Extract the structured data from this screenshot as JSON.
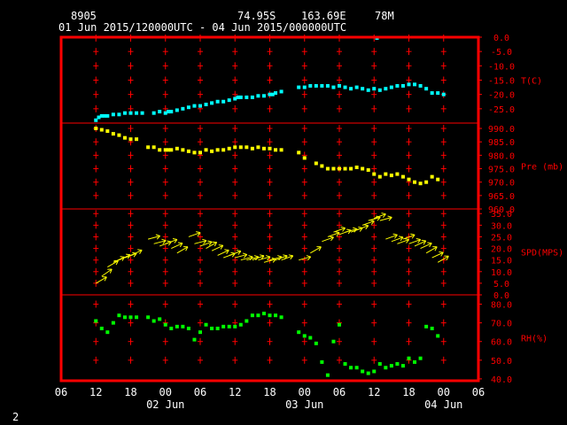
{
  "header": {
    "station_id": "8905",
    "lat": "74.95S",
    "lon": "163.69E",
    "elevation": "78M",
    "time_range": "01 Jun 2015/120000UTC - 04 Jun 2015/000000UTC"
  },
  "footer": {
    "page_number": "2"
  },
  "colors": {
    "background": "#000000",
    "frame": "#ff0000",
    "grid": "#ff0000",
    "labels": "#ffffff",
    "panel_labels": "#ff0000",
    "temperature": "#00ffff",
    "pressure": "#ffff00",
    "wind": "#ffff00",
    "humidity": "#00ff00"
  },
  "chart_data": {
    "type": "scatter",
    "x_axis": {
      "units": "hours since 01 Jun 2015 00:00 UTC",
      "range": [
        6,
        78
      ],
      "tick_labels": [
        "06",
        "12",
        "18",
        "00",
        "06",
        "12",
        "18",
        "00",
        "06",
        "12",
        "18",
        "00",
        "06"
      ],
      "tick_values": [
        6,
        12,
        18,
        24,
        30,
        36,
        42,
        48,
        54,
        60,
        66,
        72,
        78
      ],
      "grid_ticks": [
        12,
        18,
        24,
        30,
        36,
        42,
        48,
        54,
        60,
        66,
        72
      ],
      "day_labels": [
        {
          "text": "02 Jun",
          "at": 24
        },
        {
          "text": "03 Jun",
          "at": 48
        },
        {
          "text": "04 Jun",
          "at": 72
        }
      ]
    },
    "panels": [
      {
        "id": "temperature",
        "label": "T(C)",
        "range": [
          -30,
          0
        ],
        "tick_labels": [
          "0.0",
          "-5.0",
          "-10.0",
          "-15.0",
          "-20.0",
          "-25.0"
        ],
        "tick_values": [
          0,
          -5,
          -10,
          -15,
          -20,
          -25
        ],
        "grid_rows": [
          -0.3,
          -5,
          -10,
          -15,
          -20,
          -25
        ],
        "series": {
          "color": "#00ffff",
          "points": [
            [
              12,
              -29
            ],
            [
              12.5,
              -28
            ],
            [
              13,
              -27.5
            ],
            [
              13.5,
              -27.5
            ],
            [
              14,
              -27.5
            ],
            [
              15,
              -27
            ],
            [
              16,
              -27
            ],
            [
              17,
              -26.5
            ],
            [
              18,
              -26.5
            ],
            [
              19,
              -26.5
            ],
            [
              20,
              -26.5
            ],
            [
              22,
              -26.5
            ],
            [
              23,
              -26
            ],
            [
              24,
              -26.5
            ],
            [
              24.5,
              -26
            ],
            [
              25,
              -26
            ],
            [
              26,
              -25.5
            ],
            [
              27,
              -25
            ],
            [
              28,
              -24.5
            ],
            [
              29,
              -24
            ],
            [
              30,
              -24
            ],
            [
              31,
              -23.5
            ],
            [
              32,
              -23
            ],
            [
              33,
              -22.5
            ],
            [
              34,
              -22.5
            ],
            [
              35,
              -22
            ],
            [
              36,
              -21.5
            ],
            [
              36.5,
              -21
            ],
            [
              37,
              -21
            ],
            [
              38,
              -21
            ],
            [
              39,
              -21
            ],
            [
              40,
              -20.5
            ],
            [
              41,
              -20.5
            ],
            [
              42,
              -20
            ],
            [
              42.5,
              -20
            ],
            [
              43,
              -19.5
            ],
            [
              44,
              -19
            ],
            [
              47,
              -17.5
            ],
            [
              48,
              -17.5
            ],
            [
              49,
              -17
            ],
            [
              50,
              -17
            ],
            [
              51,
              -17
            ],
            [
              52,
              -17
            ],
            [
              53,
              -17.5
            ],
            [
              54,
              -17
            ],
            [
              55,
              -17.5
            ],
            [
              56,
              -18
            ],
            [
              57,
              -17.5
            ],
            [
              58,
              -18
            ],
            [
              59,
              -18.5
            ],
            [
              60,
              -18
            ],
            [
              60.5,
              -0.3
            ],
            [
              61,
              -18.5
            ],
            [
              62,
              -18
            ],
            [
              63,
              -17.5
            ],
            [
              64,
              -17
            ],
            [
              65,
              -17
            ],
            [
              66,
              -16.5
            ],
            [
              67,
              -16.5
            ],
            [
              68,
              -17
            ],
            [
              69,
              -18
            ],
            [
              70,
              -19.5
            ],
            [
              71,
              -19.5
            ],
            [
              72,
              -20
            ]
          ]
        }
      },
      {
        "id": "pressure",
        "label": "Pre (mb)",
        "range": [
          960,
          992
        ],
        "tick_labels": [
          "990.0",
          "985.0",
          "980.0",
          "975.0",
          "970.0",
          "965.0",
          "960.0"
        ],
        "tick_values": [
          990,
          985,
          980,
          975,
          970,
          965,
          960
        ],
        "grid_rows": [
          990,
          985,
          980,
          975,
          970,
          965
        ],
        "series": {
          "color": "#ffff00",
          "points": [
            [
              12,
              990
            ],
            [
              13,
              989.5
            ],
            [
              14,
              989
            ],
            [
              15,
              988
            ],
            [
              16,
              987.5
            ],
            [
              17,
              986.5
            ],
            [
              18,
              986
            ],
            [
              19,
              986
            ],
            [
              21,
              983
            ],
            [
              22,
              983
            ],
            [
              23,
              982
            ],
            [
              24,
              982
            ],
            [
              24.5,
              982
            ],
            [
              25,
              982
            ],
            [
              26,
              982.5
            ],
            [
              27,
              982
            ],
            [
              28,
              981.5
            ],
            [
              29,
              981
            ],
            [
              30,
              981
            ],
            [
              31,
              982
            ],
            [
              32,
              981.5
            ],
            [
              33,
              982
            ],
            [
              34,
              982
            ],
            [
              35,
              982.5
            ],
            [
              36,
              983
            ],
            [
              37,
              983
            ],
            [
              38,
              983
            ],
            [
              39,
              982.5
            ],
            [
              40,
              983
            ],
            [
              41,
              982.5
            ],
            [
              42,
              982.5
            ],
            [
              43,
              982
            ],
            [
              44,
              982
            ],
            [
              47,
              981
            ],
            [
              48,
              979
            ],
            [
              50,
              977
            ],
            [
              51,
              976
            ],
            [
              52,
              975
            ],
            [
              53,
              975
            ],
            [
              54,
              975
            ],
            [
              55,
              975
            ],
            [
              56,
              975
            ],
            [
              57,
              975.5
            ],
            [
              58,
              975
            ],
            [
              59,
              974.5
            ],
            [
              60,
              973
            ],
            [
              61,
              972
            ],
            [
              62,
              973
            ],
            [
              63,
              972.5
            ],
            [
              64,
              973
            ],
            [
              65,
              972
            ],
            [
              66,
              971
            ],
            [
              67,
              970
            ],
            [
              68,
              969.5
            ],
            [
              69,
              970
            ],
            [
              70,
              972
            ],
            [
              71,
              971
            ]
          ]
        }
      },
      {
        "id": "wind",
        "label": "SPD(MPS)",
        "range": [
          0,
          37
        ],
        "tick_labels": [
          "35.0",
          "30.0",
          "25.0",
          "20.0",
          "15.0",
          "10.0",
          "5.0",
          "0.0"
        ],
        "tick_values": [
          35,
          30,
          25,
          20,
          15,
          10,
          5,
          0
        ],
        "grid_rows": [
          35,
          30,
          25,
          20,
          15,
          10,
          5
        ],
        "series": {
          "color": "#ffff00",
          "points": [
            [
              12,
              5,
              30
            ],
            [
              13,
              8,
              35
            ],
            [
              14,
              12,
              30
            ],
            [
              15,
              14,
              25
            ],
            [
              16,
              15,
              25
            ],
            [
              17,
              16,
              20
            ],
            [
              18,
              17,
              25
            ],
            [
              21,
              24,
              15
            ],
            [
              22,
              22,
              15
            ],
            [
              23,
              21,
              20
            ],
            [
              24,
              22,
              20
            ],
            [
              25,
              20,
              25
            ],
            [
              26,
              18,
              30
            ],
            [
              28,
              25,
              20
            ],
            [
              29,
              22,
              15
            ],
            [
              30,
              21,
              20
            ],
            [
              31,
              20,
              30
            ],
            [
              32,
              19,
              25
            ],
            [
              33,
              17,
              25
            ],
            [
              34,
              16,
              20
            ],
            [
              35,
              17,
              20
            ],
            [
              36,
              16,
              15
            ],
            [
              37,
              15,
              15
            ],
            [
              38,
              15,
              15
            ],
            [
              39,
              15,
              20
            ],
            [
              40,
              15,
              15
            ],
            [
              41,
              14,
              15
            ],
            [
              42,
              15,
              15
            ],
            [
              43,
              15,
              20
            ],
            [
              44,
              15,
              20
            ],
            [
              47,
              15,
              15
            ],
            [
              49,
              18,
              30
            ],
            [
              51,
              23,
              20
            ],
            [
              52,
              25,
              20
            ],
            [
              53,
              27,
              20
            ],
            [
              54,
              26,
              20
            ],
            [
              55,
              27,
              15
            ],
            [
              56,
              27,
              20
            ],
            [
              57,
              28,
              20
            ],
            [
              58,
              30,
              20
            ],
            [
              59,
              32,
              15
            ],
            [
              60,
              33,
              20
            ],
            [
              61,
              32,
              15
            ],
            [
              62,
              24,
              20
            ],
            [
              63,
              23,
              20
            ],
            [
              64,
              22,
              20
            ],
            [
              65,
              24,
              20
            ],
            [
              66,
              22,
              20
            ],
            [
              67,
              21,
              25
            ],
            [
              68,
              20,
              25
            ],
            [
              69,
              18,
              30
            ],
            [
              70,
              16,
              25
            ],
            [
              71,
              14,
              30
            ]
          ]
        }
      },
      {
        "id": "humidity",
        "label": "RH(%)",
        "range": [
          39,
          85
        ],
        "tick_labels": [
          "80.0",
          "70.0",
          "60.0",
          "50.0",
          "40.0"
        ],
        "tick_values": [
          80,
          70,
          60,
          50,
          40
        ],
        "grid_rows": [
          80,
          70,
          60,
          50
        ],
        "series": {
          "color": "#00ff00",
          "points": [
            [
              12,
              71
            ],
            [
              13,
              67
            ],
            [
              14,
              65
            ],
            [
              15,
              70
            ],
            [
              16,
              74
            ],
            [
              17,
              73
            ],
            [
              18,
              73
            ],
            [
              19,
              73
            ],
            [
              21,
              73
            ],
            [
              22,
              71
            ],
            [
              23,
              72
            ],
            [
              24,
              69
            ],
            [
              25,
              67
            ],
            [
              26,
              68
            ],
            [
              27,
              68
            ],
            [
              28,
              67
            ],
            [
              29,
              61
            ],
            [
              30,
              65
            ],
            [
              31,
              69
            ],
            [
              32,
              67
            ],
            [
              33,
              67
            ],
            [
              34,
              68
            ],
            [
              35,
              68
            ],
            [
              36,
              68
            ],
            [
              37,
              69
            ],
            [
              38,
              71
            ],
            [
              39,
              74
            ],
            [
              40,
              74
            ],
            [
              41,
              75
            ],
            [
              42,
              74
            ],
            [
              43,
              74
            ],
            [
              44,
              73
            ],
            [
              47,
              65
            ],
            [
              48,
              63
            ],
            [
              49,
              62
            ],
            [
              50,
              59
            ],
            [
              51,
              49
            ],
            [
              52,
              42
            ],
            [
              53,
              60
            ],
            [
              54,
              69
            ],
            [
              55,
              48
            ],
            [
              56,
              46
            ],
            [
              57,
              46
            ],
            [
              58,
              44
            ],
            [
              59,
              43
            ],
            [
              60,
              44
            ],
            [
              61,
              48
            ],
            [
              62,
              46
            ],
            [
              63,
              47
            ],
            [
              64,
              48
            ],
            [
              65,
              47
            ],
            [
              66,
              51
            ],
            [
              67,
              49
            ],
            [
              68,
              51
            ],
            [
              69,
              68
            ],
            [
              70,
              67
            ],
            [
              71,
              63
            ]
          ]
        }
      }
    ]
  }
}
